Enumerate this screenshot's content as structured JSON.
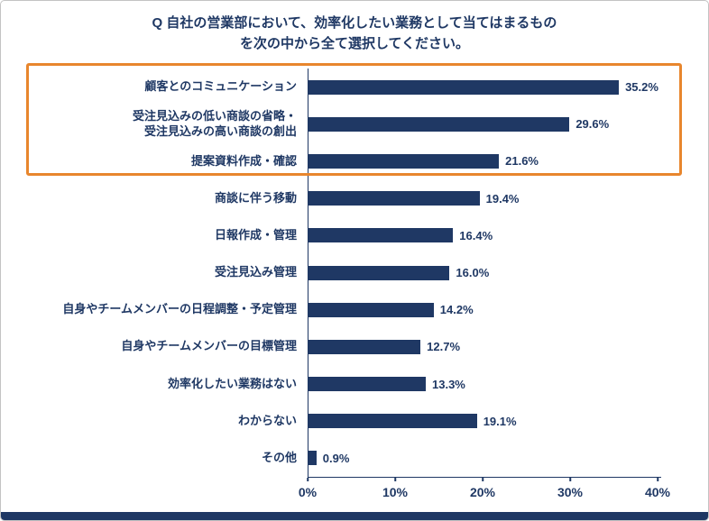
{
  "title": {
    "line1": "Q 自社の営業部において、効率化したい業務として当てはまるもの",
    "line2": "を次の中から全て選択してください。"
  },
  "chart_data": {
    "type": "bar",
    "orientation": "horizontal",
    "title": "Q 自社の営業部において、効率化したい業務として当てはまるものを次の中から全て選択してください。",
    "categories": [
      "顧客とのコミュニケーション",
      "受注見込みの低い商談の省略・\n受注見込みの高い商談の創出",
      "提案資料作成・確認",
      "商談に伴う移動",
      "日報作成・管理",
      "受注見込み管理",
      "自身やチームメンバーの日程調整・予定管理",
      "自身やチームメンバーの目標管理",
      "効率化したい業務はない",
      "わからない",
      "その他"
    ],
    "values": [
      35.2,
      29.6,
      21.6,
      19.4,
      16.4,
      16.0,
      14.2,
      12.7,
      13.3,
      19.1,
      0.9
    ],
    "value_suffix": "%",
    "xlabel": "",
    "ylabel": "",
    "xlim": [
      0,
      40
    ],
    "x_ticks": [
      "0%",
      "10%",
      "20%",
      "30%",
      "40%"
    ],
    "grid": "off",
    "legend": "none",
    "bar_color": "#1f3864",
    "text_color": "#1f3864",
    "highlight": {
      "color": "#e8862d",
      "rows": [
        0,
        1,
        2
      ],
      "note": "orange outline around the top three items"
    }
  }
}
